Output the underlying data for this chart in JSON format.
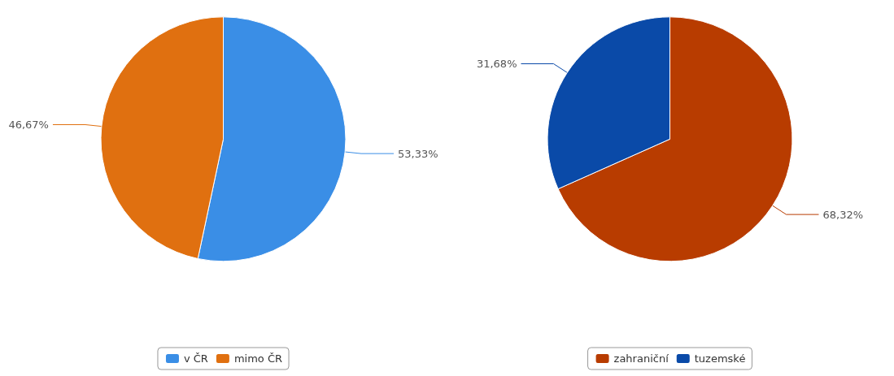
{
  "chart_data": [
    {
      "type": "pie",
      "categories": [
        "v ČR",
        "mimo ČR"
      ],
      "values": [
        53.33,
        46.67
      ],
      "colors": [
        "#3a8ee6",
        "#e07010"
      ],
      "value_labels": [
        "53,33%",
        "46,67%"
      ],
      "legend": "bottom"
    },
    {
      "type": "pie",
      "categories": [
        "zahraniční",
        "tuzemské"
      ],
      "values": [
        68.32,
        31.68
      ],
      "colors": [
        "#b83c00",
        "#0a4aa8"
      ],
      "value_labels": [
        "68,32%",
        "31,68%"
      ],
      "legend": "bottom"
    }
  ]
}
